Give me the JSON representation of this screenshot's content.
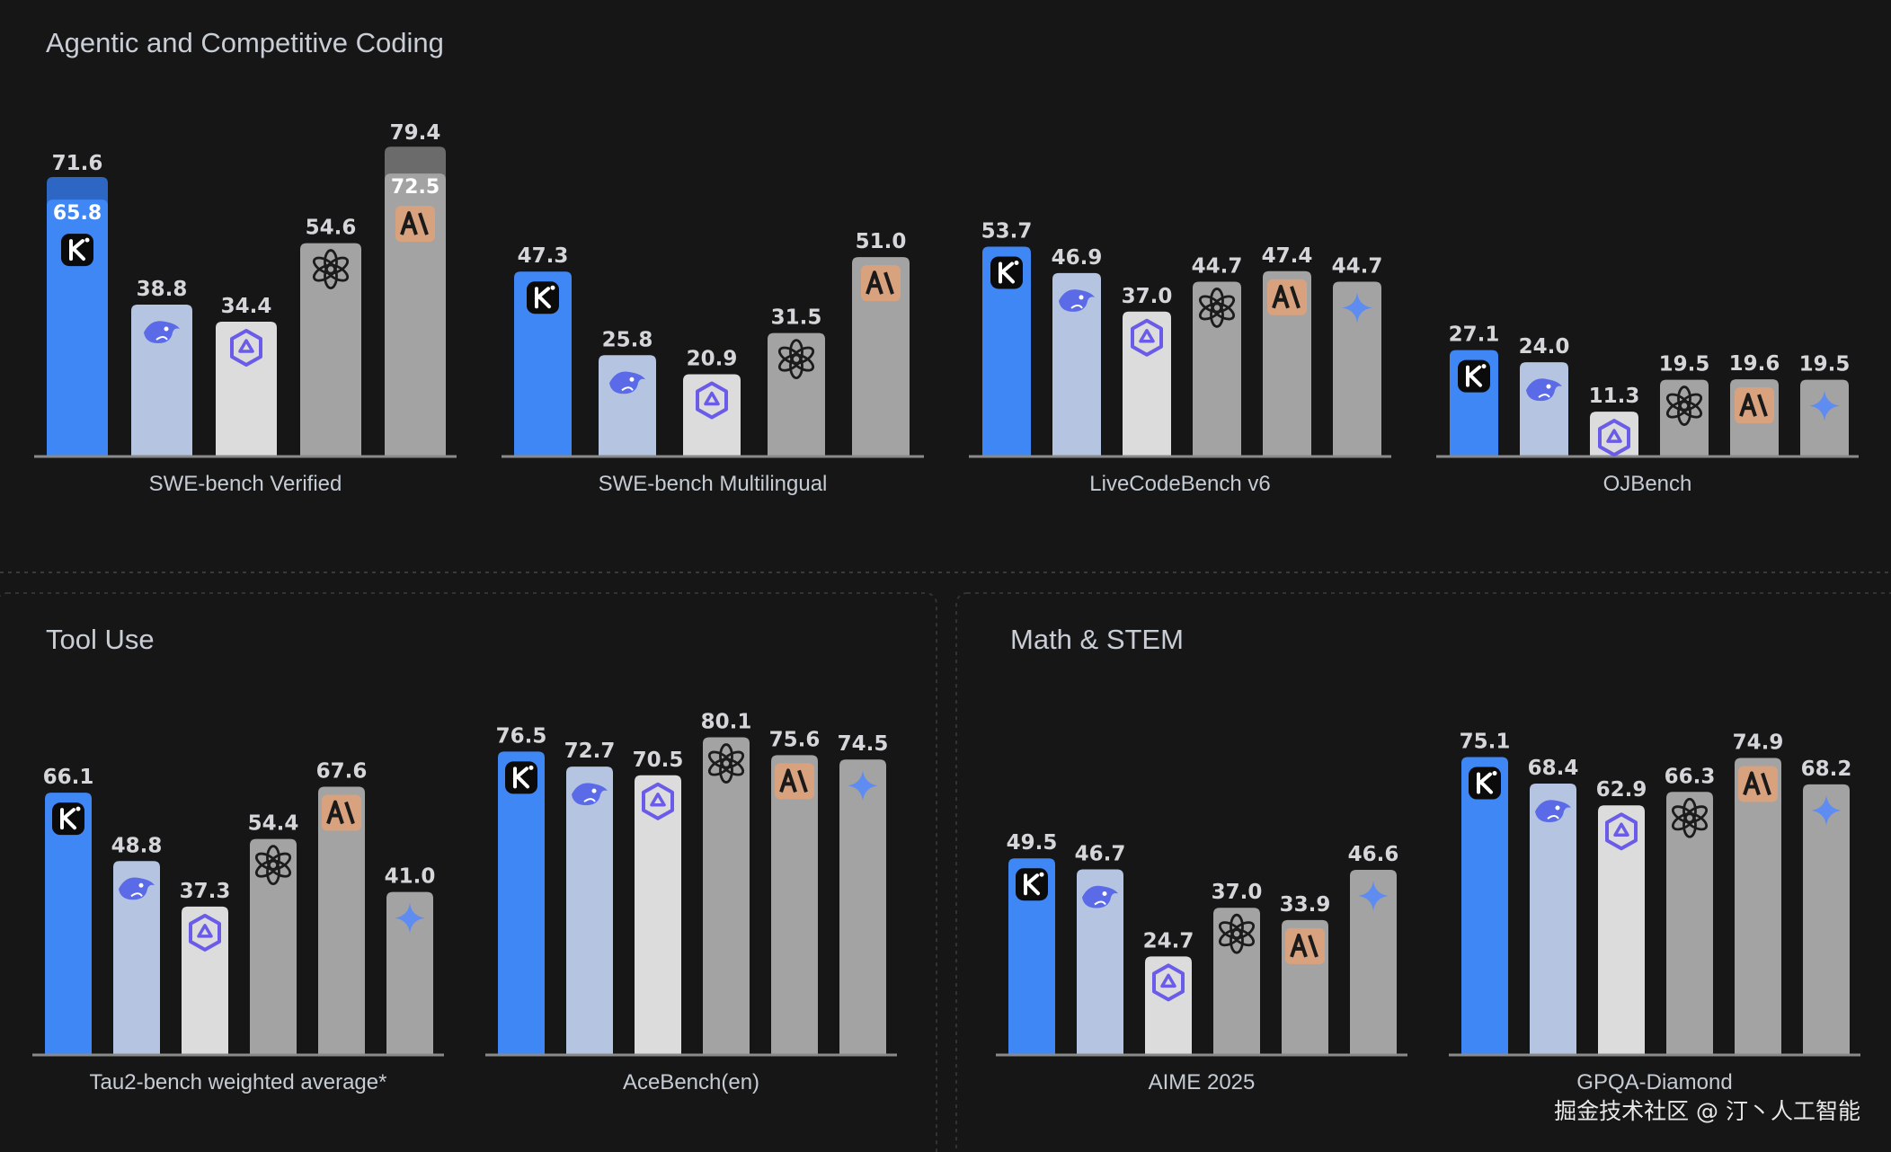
{
  "sections": [
    {
      "title": "Agentic and Competitive Coding"
    },
    {
      "title": "Tool Use"
    },
    {
      "title": "Math & STEM"
    }
  ],
  "watermark": "掘金技术社区 @ 汀丶人工智能",
  "colors": {
    "kimi": "#3f87f5",
    "deepseek": "#b5c4e0",
    "qwen": "#dcdcdc",
    "openai": "#a3a3a3",
    "anthropic": "#a3a3a3",
    "gemini": "#a3a3a3",
    "anthropic_badge": "#d9a27f",
    "background": "#161616"
  },
  "models": [
    "kimi",
    "deepseek",
    "qwen",
    "openai",
    "anthropic",
    "gemini"
  ],
  "chart_data": [
    {
      "type": "bar",
      "section": 0,
      "xlabel": "SWE-bench Verified",
      "bars": [
        {
          "model": "kimi",
          "value": 65.8,
          "extra": 71.6
        },
        {
          "model": "deepseek",
          "value": 38.8
        },
        {
          "model": "qwen",
          "value": 34.4
        },
        {
          "model": "openai",
          "value": 54.6
        },
        {
          "model": "anthropic",
          "value": 72.5,
          "extra": 79.4
        }
      ]
    },
    {
      "type": "bar",
      "section": 0,
      "xlabel": "SWE-bench Multilingual",
      "bars": [
        {
          "model": "kimi",
          "value": 47.3
        },
        {
          "model": "deepseek",
          "value": 25.8
        },
        {
          "model": "qwen",
          "value": 20.9
        },
        {
          "model": "openai",
          "value": 31.5
        },
        {
          "model": "anthropic",
          "value": 51.0
        }
      ]
    },
    {
      "type": "bar",
      "section": 0,
      "xlabel": "LiveCodeBench v6",
      "bars": [
        {
          "model": "kimi",
          "value": 53.7
        },
        {
          "model": "deepseek",
          "value": 46.9
        },
        {
          "model": "qwen",
          "value": 37.0
        },
        {
          "model": "openai",
          "value": 44.7
        },
        {
          "model": "anthropic",
          "value": 47.4
        },
        {
          "model": "gemini",
          "value": 44.7
        }
      ]
    },
    {
      "type": "bar",
      "section": 0,
      "xlabel": "OJBench",
      "bars": [
        {
          "model": "kimi",
          "value": 27.1
        },
        {
          "model": "deepseek",
          "value": 24.0
        },
        {
          "model": "qwen",
          "value": 11.3
        },
        {
          "model": "openai",
          "value": 19.5
        },
        {
          "model": "anthropic",
          "value": 19.6
        },
        {
          "model": "gemini",
          "value": 19.5
        }
      ]
    },
    {
      "type": "bar",
      "section": 1,
      "xlabel": "Tau2-bench weighted average*",
      "bars": [
        {
          "model": "kimi",
          "value": 66.1
        },
        {
          "model": "deepseek",
          "value": 48.8
        },
        {
          "model": "qwen",
          "value": 37.3
        },
        {
          "model": "openai",
          "value": 54.4
        },
        {
          "model": "anthropic",
          "value": 67.6
        },
        {
          "model": "gemini",
          "value": 41.0
        }
      ]
    },
    {
      "type": "bar",
      "section": 1,
      "xlabel": "AceBench(en)",
      "bars": [
        {
          "model": "kimi",
          "value": 76.5
        },
        {
          "model": "deepseek",
          "value": 72.7
        },
        {
          "model": "qwen",
          "value": 70.5
        },
        {
          "model": "openai",
          "value": 80.1
        },
        {
          "model": "anthropic",
          "value": 75.6
        },
        {
          "model": "gemini",
          "value": 74.5
        }
      ]
    },
    {
      "type": "bar",
      "section": 2,
      "xlabel": "AIME 2025",
      "bars": [
        {
          "model": "kimi",
          "value": 49.5
        },
        {
          "model": "deepseek",
          "value": 46.7
        },
        {
          "model": "qwen",
          "value": 24.7
        },
        {
          "model": "openai",
          "value": 37.0
        },
        {
          "model": "anthropic",
          "value": 33.9
        },
        {
          "model": "gemini",
          "value": 46.6
        }
      ]
    },
    {
      "type": "bar",
      "section": 2,
      "xlabel": "GPQA-Diamond",
      "bars": [
        {
          "model": "kimi",
          "value": 75.1
        },
        {
          "model": "deepseek",
          "value": 68.4
        },
        {
          "model": "qwen",
          "value": 62.9
        },
        {
          "model": "openai",
          "value": 66.3
        },
        {
          "model": "anthropic",
          "value": 74.9
        },
        {
          "model": "gemini",
          "value": 68.2
        }
      ]
    }
  ]
}
